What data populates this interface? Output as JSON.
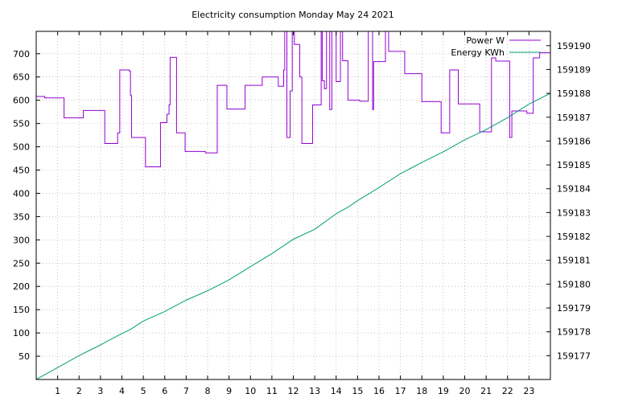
{
  "chart_data": {
    "type": "line",
    "title": "Electricity consumption Monday May 24 2021",
    "x_ticks": [
      1,
      2,
      3,
      4,
      5,
      6,
      7,
      8,
      9,
      10,
      11,
      12,
      13,
      14,
      15,
      16,
      17,
      18,
      19,
      20,
      21,
      22,
      23
    ],
    "xlim": [
      0,
      24
    ],
    "ylim_left": [
      0,
      748
    ],
    "yticks_left": [
      50,
      100,
      150,
      200,
      250,
      300,
      350,
      400,
      450,
      500,
      550,
      600,
      650,
      700
    ],
    "ylim_right": [
      159176.0,
      159190.6
    ],
    "yticks_right": [
      159177,
      159178,
      159179,
      159180,
      159181,
      159182,
      159183,
      159184,
      159185,
      159186,
      159187,
      159188,
      159189,
      159190
    ],
    "grid": true,
    "legend_position": "top-right",
    "series": [
      {
        "name": "Power W",
        "axis": "left",
        "color": "#9400d3",
        "style": "steps",
        "points": [
          [
            0,
            608
          ],
          [
            0.4,
            605
          ],
          [
            1.3,
            562
          ],
          [
            2.2,
            578
          ],
          [
            3.2,
            507
          ],
          [
            3.8,
            530
          ],
          [
            3.9,
            665
          ],
          [
            4.35,
            662
          ],
          [
            4.4,
            610
          ],
          [
            4.45,
            520
          ],
          [
            5.1,
            457
          ],
          [
            5.8,
            552
          ],
          [
            6.1,
            570
          ],
          [
            6.2,
            590
          ],
          [
            6.25,
            692
          ],
          [
            6.55,
            530
          ],
          [
            6.95,
            490
          ],
          [
            7.9,
            487
          ],
          [
            8.45,
            632
          ],
          [
            8.9,
            581
          ],
          [
            9.75,
            632
          ],
          [
            10.55,
            650
          ],
          [
            11.3,
            630
          ],
          [
            11.55,
            665
          ],
          [
            11.6,
            748
          ],
          [
            11.7,
            520
          ],
          [
            11.85,
            620
          ],
          [
            11.95,
            748
          ],
          [
            12.05,
            720
          ],
          [
            12.3,
            650
          ],
          [
            12.4,
            507
          ],
          [
            12.9,
            590
          ],
          [
            13.3,
            748
          ],
          [
            13.35,
            642
          ],
          [
            13.45,
            625
          ],
          [
            13.55,
            748
          ],
          [
            13.7,
            580
          ],
          [
            13.8,
            748
          ],
          [
            14.0,
            640
          ],
          [
            14.2,
            748
          ],
          [
            14.3,
            685
          ],
          [
            14.55,
            600
          ],
          [
            15.1,
            598
          ],
          [
            15.5,
            748
          ],
          [
            15.7,
            580
          ],
          [
            15.75,
            683
          ],
          [
            16.3,
            748
          ],
          [
            16.45,
            705
          ],
          [
            17.2,
            657
          ],
          [
            18.0,
            597
          ],
          [
            18.9,
            530
          ],
          [
            19.3,
            665
          ],
          [
            19.7,
            592
          ],
          [
            20.7,
            532
          ],
          [
            21.25,
            691
          ],
          [
            21.45,
            684
          ],
          [
            22.1,
            520
          ],
          [
            22.2,
            577
          ],
          [
            22.9,
            572
          ],
          [
            23.2,
            691
          ],
          [
            23.5,
            702
          ],
          [
            24,
            702
          ]
        ]
      },
      {
        "name": "Energy KWh",
        "axis": "right",
        "color": "#009e73",
        "style": "line",
        "points": [
          [
            0,
            159176.0
          ],
          [
            1,
            159176.5
          ],
          [
            2,
            159177.0
          ],
          [
            3,
            159177.45
          ],
          [
            4,
            159177.93
          ],
          [
            4.4,
            159178.1
          ],
          [
            5,
            159178.45
          ],
          [
            6,
            159178.85
          ],
          [
            7,
            159179.33
          ],
          [
            8,
            159179.72
          ],
          [
            9,
            159180.18
          ],
          [
            10,
            159180.73
          ],
          [
            11,
            159181.28
          ],
          [
            12,
            159181.88
          ],
          [
            13,
            159182.3
          ],
          [
            14,
            159182.95
          ],
          [
            14.6,
            159183.25
          ],
          [
            15,
            159183.5
          ],
          [
            16,
            159184.05
          ],
          [
            17,
            159184.63
          ],
          [
            18,
            159185.1
          ],
          [
            19,
            159185.55
          ],
          [
            20,
            159186.05
          ],
          [
            21,
            159186.48
          ],
          [
            22,
            159186.98
          ],
          [
            23,
            159187.55
          ],
          [
            24,
            159188.0
          ]
        ]
      }
    ]
  }
}
